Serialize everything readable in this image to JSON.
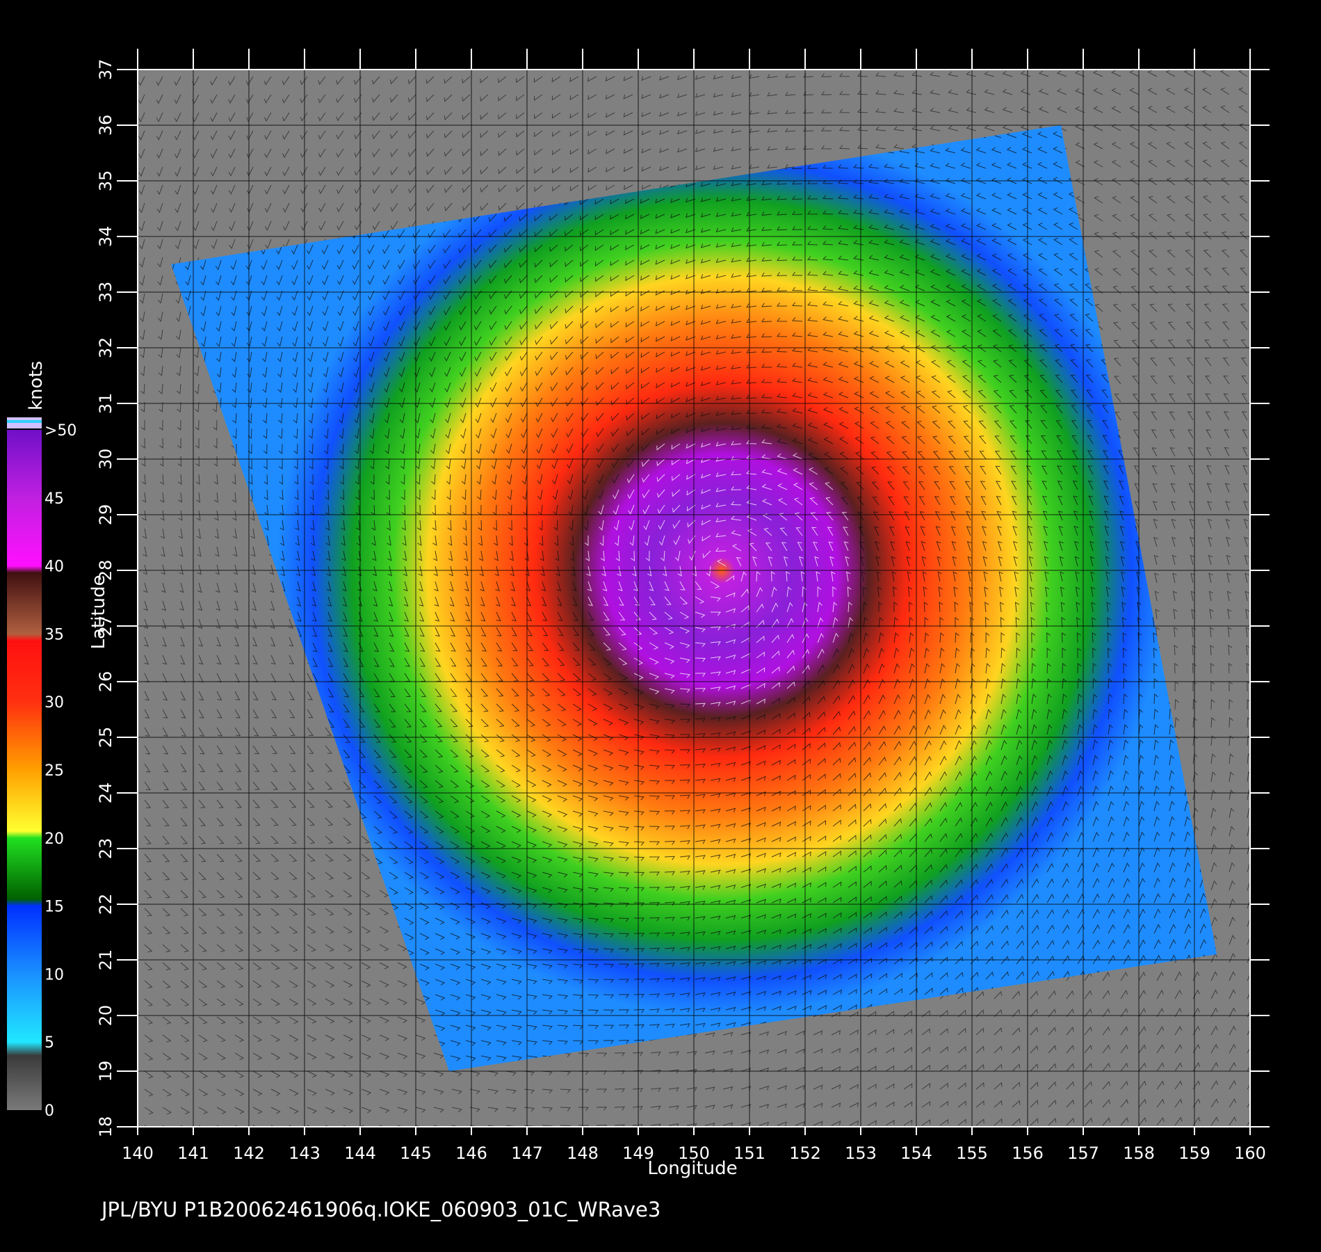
{
  "map": {
    "x_axis": {
      "title": "Longitude",
      "min": 140,
      "max": 160,
      "ticks": [
        "140",
        "141",
        "142",
        "143",
        "144",
        "145",
        "146",
        "147",
        "148",
        "149",
        "150",
        "151",
        "152",
        "153",
        "154",
        "155",
        "156",
        "157",
        "158",
        "159",
        "160"
      ]
    },
    "y_axis": {
      "title": "Latitude",
      "min": 18,
      "max": 37,
      "ticks": [
        "18",
        "19",
        "20",
        "21",
        "22",
        "23",
        "24",
        "25",
        "26",
        "27",
        "28",
        "29",
        "30",
        "31",
        "32",
        "33",
        "34",
        "35",
        "36",
        "37"
      ]
    },
    "grid": true,
    "background_color": "#808080",
    "storm_center": {
      "lon": 150.5,
      "lat": 28.0
    },
    "swath_corners": [
      {
        "lon": 140.6,
        "lat": 33.5
      },
      {
        "lon": 156.6,
        "lat": 36.0
      },
      {
        "lon": 159.4,
        "lat": 21.1
      },
      {
        "lon": 145.6,
        "lat": 19.0
      }
    ]
  },
  "colorbar": {
    "title": "knots",
    "labels": [
      ">50",
      "45",
      "40",
      "35",
      "30",
      "25",
      "20",
      "15",
      "10",
      "5",
      "0"
    ],
    "stops": [
      {
        "value": 0,
        "color": "#7a7a7a"
      },
      {
        "value": 4,
        "color": "#3a3a3a"
      },
      {
        "value": 5,
        "color": "#20e8ff"
      },
      {
        "value": 10,
        "color": "#1a90ff"
      },
      {
        "value": 15,
        "color": "#0030ff"
      },
      {
        "value": 15.5,
        "color": "#006000"
      },
      {
        "value": 20,
        "color": "#20e020"
      },
      {
        "value": 20.5,
        "color": "#ffff30"
      },
      {
        "value": 25,
        "color": "#ffa000"
      },
      {
        "value": 30,
        "color": "#ff3010"
      },
      {
        "value": 34.5,
        "color": "#ff1010"
      },
      {
        "value": 35,
        "color": "#b06040"
      },
      {
        "value": 39.5,
        "color": "#401010"
      },
      {
        "value": 40,
        "color": "#ff10ff"
      },
      {
        "value": 45,
        "color": "#c020e0"
      },
      {
        "value": 50,
        "color": "#7010c8"
      }
    ]
  },
  "footer": {
    "text": "JPL/BYU  P1B20062461906q.IOKE_060903_01C_WRave3"
  }
}
